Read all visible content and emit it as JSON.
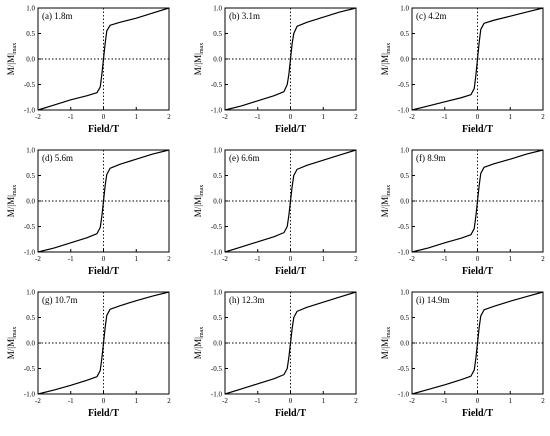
{
  "chart_data": [
    {
      "type": "line",
      "panel_label": "(a) 1.8m",
      "xlabel": "Field/T",
      "ylabel_main": "M/|M|",
      "ylabel_sub": "max",
      "xlim": [
        -2,
        2
      ],
      "ylim": [
        -1.0,
        1.0
      ],
      "xticks": [
        "-2",
        "-1",
        "0",
        "1",
        "2"
      ],
      "yticks": [
        "-1.0",
        "-0.5",
        "0.0",
        "0.5",
        "1.0"
      ],
      "series": [
        {
          "x": [
            -2.0,
            -1.5,
            -1.0,
            -0.5,
            -0.2,
            -0.1,
            -0.05,
            0.0,
            0.05,
            0.1,
            0.2,
            0.5,
            1.0,
            1.5,
            2.0
          ],
          "y": [
            -1.0,
            -0.9,
            -0.8,
            -0.72,
            -0.66,
            -0.55,
            -0.3,
            0.0,
            0.3,
            0.55,
            0.66,
            0.72,
            0.8,
            0.9,
            1.0
          ]
        }
      ]
    },
    {
      "type": "line",
      "panel_label": "(b) 3.1m",
      "xlabel": "Field/T",
      "ylabel_main": "M/|M|",
      "ylabel_sub": "max",
      "xlim": [
        -2,
        2
      ],
      "ylim": [
        -1.0,
        1.0
      ],
      "xticks": [
        "-2",
        "-1",
        "0",
        "1",
        "2"
      ],
      "yticks": [
        "-1.0",
        "-0.5",
        "0.0",
        "0.5",
        "1.0"
      ],
      "series": [
        {
          "x": [
            -2.0,
            -1.5,
            -1.0,
            -0.5,
            -0.2,
            -0.1,
            -0.05,
            0.0,
            0.05,
            0.1,
            0.2,
            0.5,
            1.0,
            1.5,
            2.0
          ],
          "y": [
            -1.0,
            -0.92,
            -0.82,
            -0.72,
            -0.64,
            -0.5,
            -0.3,
            0.0,
            0.3,
            0.5,
            0.64,
            0.72,
            0.82,
            0.92,
            1.0
          ]
        }
      ]
    },
    {
      "type": "line",
      "panel_label": "(c) 4.2m",
      "xlabel": "Field/T",
      "ylabel_main": "M/|M|",
      "ylabel_sub": "max",
      "xlim": [
        -2,
        2
      ],
      "ylim": [
        -1.0,
        1.0
      ],
      "xticks": [
        "-2",
        "-1",
        "0",
        "1",
        "2"
      ],
      "yticks": [
        "-1.0",
        "-0.5",
        "0.0",
        "0.5",
        "1.0"
      ],
      "series": [
        {
          "x": [
            -2.0,
            -1.5,
            -1.0,
            -0.5,
            -0.2,
            -0.1,
            -0.05,
            0.0,
            0.05,
            0.1,
            0.2,
            0.5,
            1.0,
            1.5,
            2.0
          ],
          "y": [
            -1.0,
            -0.92,
            -0.84,
            -0.76,
            -0.7,
            -0.58,
            -0.32,
            0.0,
            0.32,
            0.58,
            0.7,
            0.76,
            0.84,
            0.92,
            1.0
          ]
        }
      ]
    },
    {
      "type": "line",
      "panel_label": "(d) 5.6m",
      "xlabel": "Field/T",
      "ylabel_main": "M/|M|",
      "ylabel_sub": "max",
      "xlim": [
        -2,
        2
      ],
      "ylim": [
        -1.0,
        1.0
      ],
      "xticks": [
        "-2",
        "-1",
        "0",
        "1",
        "2"
      ],
      "yticks": [
        "-1.0",
        "-0.5",
        "0.0",
        "0.5",
        "1.0"
      ],
      "series": [
        {
          "x": [
            -2.0,
            -1.5,
            -1.0,
            -0.5,
            -0.2,
            -0.1,
            -0.05,
            0.0,
            0.05,
            0.1,
            0.2,
            0.5,
            1.0,
            1.5,
            2.0
          ],
          "y": [
            -1.0,
            -0.92,
            -0.82,
            -0.72,
            -0.64,
            -0.52,
            -0.3,
            0.0,
            0.3,
            0.52,
            0.64,
            0.72,
            0.82,
            0.92,
            1.0
          ]
        }
      ]
    },
    {
      "type": "line",
      "panel_label": "(e) 6.6m",
      "xlabel": "Field/T",
      "ylabel_main": "M/|M|",
      "ylabel_sub": "max",
      "xlim": [
        -2,
        2
      ],
      "ylim": [
        -1.0,
        1.0
      ],
      "xticks": [
        "-2",
        "-1",
        "0",
        "1",
        "2"
      ],
      "yticks": [
        "-1.0",
        "-0.5",
        "0.0",
        "0.5",
        "1.0"
      ],
      "series": [
        {
          "x": [
            -2.0,
            -1.5,
            -1.0,
            -0.5,
            -0.2,
            -0.1,
            -0.05,
            0.0,
            0.05,
            0.1,
            0.2,
            0.5,
            1.0,
            1.5,
            2.0
          ],
          "y": [
            -1.0,
            -0.9,
            -0.8,
            -0.7,
            -0.62,
            -0.5,
            -0.28,
            0.0,
            0.28,
            0.5,
            0.62,
            0.7,
            0.8,
            0.9,
            1.0
          ]
        }
      ]
    },
    {
      "type": "line",
      "panel_label": "(f) 8.9m",
      "xlabel": "Field/T",
      "ylabel_main": "M/|M|",
      "ylabel_sub": "max",
      "xlim": [
        -2,
        2
      ],
      "ylim": [
        -1.0,
        1.0
      ],
      "xticks": [
        "-2",
        "-1",
        "0",
        "1",
        "2"
      ],
      "yticks": [
        "-1.0",
        "-0.5",
        "0.0",
        "0.5",
        "1.0"
      ],
      "series": [
        {
          "x": [
            -2.0,
            -1.5,
            -1.0,
            -0.5,
            -0.2,
            -0.1,
            -0.05,
            0.0,
            0.05,
            0.1,
            0.2,
            0.5,
            1.0,
            1.5,
            2.0
          ],
          "y": [
            -1.0,
            -0.92,
            -0.82,
            -0.73,
            -0.66,
            -0.54,
            -0.3,
            0.0,
            0.3,
            0.54,
            0.66,
            0.73,
            0.82,
            0.92,
            1.0
          ]
        }
      ]
    },
    {
      "type": "line",
      "panel_label": "(g) 10.7m",
      "xlabel": "Field/T",
      "ylabel_main": "M/|M|",
      "ylabel_sub": "max",
      "xlim": [
        -2,
        2
      ],
      "ylim": [
        -1.0,
        1.0
      ],
      "xticks": [
        "-2",
        "-1",
        "0",
        "1",
        "2"
      ],
      "yticks": [
        "-1.0",
        "-0.5",
        "0.0",
        "0.5",
        "1.0"
      ],
      "series": [
        {
          "x": [
            -2.0,
            -1.5,
            -1.0,
            -0.5,
            -0.2,
            -0.1,
            -0.05,
            0.0,
            0.05,
            0.1,
            0.2,
            0.5,
            1.0,
            1.5,
            2.0
          ],
          "y": [
            -1.0,
            -0.92,
            -0.83,
            -0.73,
            -0.66,
            -0.54,
            -0.3,
            0.0,
            0.3,
            0.54,
            0.66,
            0.73,
            0.83,
            0.92,
            1.0
          ]
        }
      ]
    },
    {
      "type": "line",
      "panel_label": "(h) 12.3m",
      "xlabel": "Field/T",
      "ylabel_main": "M/|M|",
      "ylabel_sub": "max",
      "xlim": [
        -2,
        2
      ],
      "ylim": [
        -1.0,
        1.0
      ],
      "xticks": [
        "-2",
        "-1",
        "0",
        "1",
        "2"
      ],
      "yticks": [
        "-1.0",
        "-0.5",
        "0.0",
        "0.5",
        "1.0"
      ],
      "series": [
        {
          "x": [
            -2.0,
            -1.5,
            -1.0,
            -0.5,
            -0.2,
            -0.1,
            -0.05,
            0.0,
            0.05,
            0.1,
            0.2,
            0.5,
            1.0,
            1.5,
            2.0
          ],
          "y": [
            -1.0,
            -0.9,
            -0.8,
            -0.7,
            -0.62,
            -0.5,
            -0.28,
            0.0,
            0.28,
            0.5,
            0.62,
            0.7,
            0.8,
            0.9,
            1.0
          ]
        }
      ]
    },
    {
      "type": "line",
      "panel_label": "(i) 14.9m",
      "xlabel": "Field/T",
      "ylabel_main": "M/|M|",
      "ylabel_sub": "max",
      "xlim": [
        -2,
        2
      ],
      "ylim": [
        -1.0,
        1.0
      ],
      "xticks": [
        "-2",
        "-1",
        "0",
        "1",
        "2"
      ],
      "yticks": [
        "-1.0",
        "-0.5",
        "0.0",
        "0.5",
        "1.0"
      ],
      "series": [
        {
          "x": [
            -2.0,
            -1.5,
            -1.0,
            -0.5,
            -0.2,
            -0.1,
            -0.05,
            0.0,
            0.05,
            0.1,
            0.2,
            0.5,
            1.0,
            1.5,
            2.0
          ],
          "y": [
            -1.0,
            -0.91,
            -0.82,
            -0.72,
            -0.65,
            -0.53,
            -0.3,
            0.0,
            0.3,
            0.53,
            0.65,
            0.72,
            0.82,
            0.91,
            1.0
          ]
        }
      ]
    }
  ]
}
